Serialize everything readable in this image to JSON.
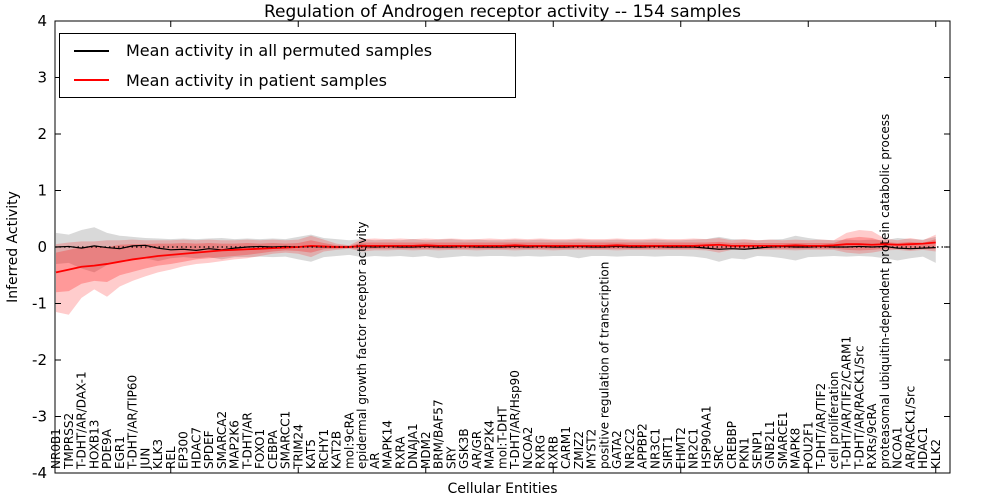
{
  "figure": {
    "title": "Regulation of Androgen receptor activity -- 154 samples",
    "xlabel": "Cellular Entities",
    "ylabel": "Inferred Activity"
  },
  "legend": {
    "entries": [
      {
        "label": "Mean activity in all permuted samples",
        "color": "#000000"
      },
      {
        "label": "Mean activity in patient samples",
        "color": "#ff0000"
      }
    ]
  },
  "chart_data": {
    "type": "line",
    "title": "Regulation of Androgen receptor activity -- 154 samples",
    "xlabel": "Cellular Entities",
    "ylabel": "Inferred Activity",
    "ylim": [
      -4,
      4
    ],
    "yticks": [
      "4",
      "3",
      "2",
      "1",
      "0",
      "-1",
      "-2",
      "-3",
      "-4"
    ],
    "ytick_values": [
      4,
      3,
      2,
      1,
      0,
      -1,
      -2,
      -3,
      -4
    ],
    "x_major_tick_interval": 10,
    "grid": false,
    "legend_position": "upper left",
    "zero_line": {
      "style": "dotted",
      "color": "#000000",
      "y": 0
    },
    "categories": [
      "NR0B1",
      "TMPRSS2",
      "T-DHT/AR/DAX-1",
      "HOXB13",
      "PDE9A",
      "EGR1",
      "T-DHT/AR/TIP60",
      "JUN",
      "KLK3",
      "REL",
      "EP300",
      "HDAC7",
      "SPDEF",
      "SMARCA2",
      "MAP2K6",
      "T-DHT/AR",
      "FOXO1",
      "CEBPA",
      "SMARCC1",
      "TRIM24",
      "KAT5",
      "RCHY1",
      "KAT2B",
      "mol:9cRA",
      "epidermal growth factor receptor activity",
      "AR",
      "MAPK14",
      "RXRA",
      "DNAJA1",
      "MDM2",
      "BRM/BAF57",
      "SRY",
      "GSK3B",
      "AR/GR",
      "MAP2K4",
      "mol:T-DHT",
      "T-DHT/AR/Hsp90",
      "NCOA2",
      "RXRG",
      "RXRB",
      "CARM1",
      "ZMIZ2",
      "MYST2",
      "positive regulation of transcription",
      "GATA2",
      "NR2C2",
      "APPBP2",
      "NR3C1",
      "SIRT1",
      "EHMT2",
      "NR2C1",
      "HSP90AA1",
      "SRC",
      "CREBBP",
      "PKN1",
      "SENP1",
      "GNB2L1",
      "SMARCE1",
      "MAPK8",
      "POU2F1",
      "T-DHT/AR/TIF2",
      "cell proliferation",
      "T-DHT/AR/TIF2/CARM1",
      "T-DHT/AR/RACK1/Src",
      "RXRs/9cRA",
      "proteasomal ubiquitin-dependent protein catabolic process",
      "NCOA1",
      "AR/RACK1/Src",
      "HDAC1",
      "KLK2"
    ],
    "series": [
      {
        "id": "permuted-mean",
        "name": "Mean activity in all permuted samples",
        "color": "#000000",
        "width": 1.2,
        "values": [
          0.0,
          0.01,
          -0.02,
          0.02,
          -0.01,
          -0.03,
          0.02,
          0.03,
          -0.02,
          -0.05,
          -0.04,
          -0.06,
          -0.03,
          -0.05,
          -0.02,
          0.0,
          0.01,
          0.0,
          0.01,
          0.0,
          0.01,
          0.0,
          0.0,
          0.0,
          0.01,
          0.0,
          0.01,
          0.0,
          0.0,
          0.01,
          0.0,
          0.0,
          0.01,
          0.0,
          0.0,
          0.0,
          0.01,
          0.0,
          0.01,
          0.0,
          0.0,
          0.01,
          0.0,
          0.0,
          0.01,
          0.0,
          0.0,
          0.01,
          0.0,
          0.0,
          0.0,
          -0.02,
          -0.04,
          -0.03,
          -0.04,
          -0.02,
          0.0,
          0.01,
          0.0,
          0.0,
          0.01,
          0.0,
          0.0,
          0.01,
          0.0,
          0.01,
          -0.02,
          -0.03,
          -0.02,
          -0.01
        ]
      },
      {
        "id": "patient-mean",
        "name": "Mean activity in patient samples",
        "color": "#ff0000",
        "width": 1.8,
        "values": [
          -0.45,
          -0.4,
          -0.35,
          -0.33,
          -0.3,
          -0.26,
          -0.22,
          -0.19,
          -0.16,
          -0.14,
          -0.12,
          -0.1,
          -0.08,
          -0.06,
          -0.05,
          -0.04,
          -0.03,
          -0.02,
          -0.01,
          0.0,
          0.02,
          0.01,
          0.0,
          0.0,
          0.02,
          0.02,
          0.02,
          0.02,
          0.02,
          0.03,
          0.02,
          0.02,
          0.02,
          0.02,
          0.02,
          0.02,
          0.03,
          0.02,
          0.02,
          0.02,
          0.02,
          0.02,
          0.02,
          0.02,
          0.03,
          0.02,
          0.02,
          0.02,
          0.02,
          0.02,
          0.02,
          0.03,
          0.04,
          0.02,
          0.02,
          0.02,
          0.02,
          0.02,
          0.03,
          0.02,
          0.02,
          0.03,
          0.05,
          0.05,
          0.04,
          0.05,
          0.04,
          0.05,
          0.06,
          0.08
        ]
      }
    ],
    "bands": [
      {
        "name": "permuted-std-band",
        "color": "rgba(120,120,120,0.28)",
        "upper": [
          0.25,
          0.22,
          0.3,
          0.35,
          0.25,
          0.2,
          0.18,
          0.16,
          0.15,
          0.14,
          0.15,
          0.14,
          0.15,
          0.16,
          0.14,
          0.15,
          0.14,
          0.15,
          0.14,
          0.18,
          0.22,
          0.16,
          0.14,
          0.12,
          0.14,
          0.12,
          0.13,
          0.12,
          0.14,
          0.12,
          0.13,
          0.14,
          0.12,
          0.13,
          0.12,
          0.12,
          0.13,
          0.12,
          0.13,
          0.12,
          0.12,
          0.13,
          0.12,
          0.12,
          0.13,
          0.12,
          0.12,
          0.13,
          0.12,
          0.12,
          0.13,
          0.14,
          0.18,
          0.14,
          0.13,
          0.12,
          0.13,
          0.14,
          0.2,
          0.16,
          0.13,
          0.12,
          0.13,
          0.12,
          0.13,
          0.12,
          0.16,
          0.14,
          0.13,
          0.18
        ],
        "lower": [
          -0.3,
          -0.28,
          -0.38,
          -0.45,
          -0.32,
          -0.26,
          -0.22,
          -0.2,
          -0.25,
          -0.2,
          -0.18,
          -0.2,
          -0.18,
          -0.22,
          -0.18,
          -0.18,
          -0.17,
          -0.18,
          -0.17,
          -0.22,
          -0.26,
          -0.18,
          -0.16,
          -0.14,
          -0.18,
          -0.16,
          -0.17,
          -0.16,
          -0.18,
          -0.16,
          -0.2,
          -0.18,
          -0.16,
          -0.17,
          -0.16,
          -0.16,
          -0.17,
          -0.16,
          -0.17,
          -0.16,
          -0.16,
          -0.2,
          -0.16,
          -0.16,
          -0.17,
          -0.16,
          -0.16,
          -0.17,
          -0.16,
          -0.16,
          -0.17,
          -0.2,
          -0.26,
          -0.2,
          -0.22,
          -0.16,
          -0.17,
          -0.2,
          -0.24,
          -0.18,
          -0.17,
          -0.16,
          -0.17,
          -0.16,
          -0.17,
          -0.2,
          -0.24,
          -0.2,
          -0.17,
          -0.28
        ]
      },
      {
        "name": "patient-std-band-outer",
        "color": "rgba(255,0,0,0.20)",
        "upper": [
          0.05,
          0.08,
          0.1,
          0.1,
          0.12,
          0.12,
          0.13,
          0.12,
          0.12,
          0.12,
          0.13,
          0.12,
          0.13,
          0.12,
          0.12,
          0.13,
          0.12,
          0.13,
          0.12,
          0.13,
          0.2,
          0.13,
          0.06,
          0.03,
          0.14,
          0.15,
          0.14,
          0.15,
          0.14,
          0.15,
          0.14,
          0.15,
          0.14,
          0.14,
          0.15,
          0.14,
          0.15,
          0.14,
          0.15,
          0.14,
          0.14,
          0.15,
          0.14,
          0.14,
          0.15,
          0.14,
          0.14,
          0.15,
          0.14,
          0.14,
          0.15,
          0.14,
          0.16,
          0.12,
          0.14,
          0.12,
          0.13,
          0.12,
          0.13,
          0.12,
          0.13,
          0.12,
          0.25,
          0.3,
          0.28,
          0.15,
          0.12,
          0.16,
          0.12,
          0.22
        ],
        "lower": [
          -1.15,
          -1.2,
          -0.9,
          -0.75,
          -0.88,
          -0.7,
          -0.6,
          -0.52,
          -0.45,
          -0.4,
          -0.34,
          -0.3,
          -0.28,
          -0.25,
          -0.22,
          -0.2,
          -0.16,
          -0.12,
          -0.1,
          -0.12,
          -0.18,
          -0.08,
          -0.05,
          -0.03,
          -0.08,
          -0.06,
          -0.06,
          -0.05,
          -0.06,
          -0.05,
          -0.06,
          -0.05,
          -0.05,
          -0.06,
          -0.05,
          -0.05,
          -0.06,
          -0.05,
          -0.05,
          -0.06,
          -0.05,
          -0.05,
          -0.05,
          -0.05,
          -0.06,
          -0.05,
          -0.05,
          -0.05,
          -0.05,
          -0.05,
          -0.05,
          -0.06,
          -0.1,
          -0.05,
          -0.05,
          -0.05,
          -0.05,
          -0.05,
          -0.06,
          -0.05,
          -0.05,
          -0.05,
          -0.1,
          -0.12,
          -0.1,
          -0.06,
          -0.05,
          -0.07,
          -0.05,
          -0.08
        ]
      },
      {
        "name": "patient-std-band-inner",
        "color": "rgba(255,0,0,0.25)",
        "upper": [
          -0.1,
          -0.05,
          0.0,
          0.02,
          0.0,
          0.04,
          0.05,
          0.05,
          0.06,
          0.06,
          0.07,
          0.06,
          0.07,
          0.06,
          0.06,
          0.07,
          0.06,
          0.07,
          0.06,
          0.07,
          0.12,
          0.07,
          0.03,
          0.02,
          0.08,
          0.08,
          0.08,
          0.08,
          0.08,
          0.08,
          0.08,
          0.08,
          0.08,
          0.08,
          0.08,
          0.08,
          0.08,
          0.08,
          0.08,
          0.08,
          0.08,
          0.08,
          0.08,
          0.08,
          0.08,
          0.08,
          0.08,
          0.08,
          0.08,
          0.08,
          0.08,
          0.08,
          0.09,
          0.07,
          0.08,
          0.07,
          0.07,
          0.07,
          0.07,
          0.07,
          0.07,
          0.07,
          0.15,
          0.18,
          0.16,
          0.09,
          0.07,
          0.09,
          0.07,
          0.14
        ],
        "lower": [
          -0.8,
          -0.78,
          -0.65,
          -0.6,
          -0.62,
          -0.5,
          -0.44,
          -0.38,
          -0.33,
          -0.3,
          -0.26,
          -0.22,
          -0.2,
          -0.18,
          -0.16,
          -0.14,
          -0.11,
          -0.08,
          -0.06,
          -0.07,
          -0.1,
          -0.04,
          -0.03,
          -0.02,
          -0.04,
          -0.03,
          -0.03,
          -0.03,
          -0.03,
          -0.03,
          -0.03,
          -0.03,
          -0.03,
          -0.03,
          -0.03,
          -0.03,
          -0.03,
          -0.03,
          -0.03,
          -0.03,
          -0.03,
          -0.03,
          -0.03,
          -0.03,
          -0.03,
          -0.03,
          -0.03,
          -0.03,
          -0.03,
          -0.03,
          -0.03,
          -0.03,
          -0.05,
          -0.03,
          -0.03,
          -0.03,
          -0.03,
          -0.03,
          -0.03,
          -0.03,
          -0.03,
          -0.03,
          -0.05,
          -0.06,
          -0.05,
          -0.03,
          -0.03,
          -0.04,
          -0.03,
          -0.04
        ]
      }
    ]
  }
}
